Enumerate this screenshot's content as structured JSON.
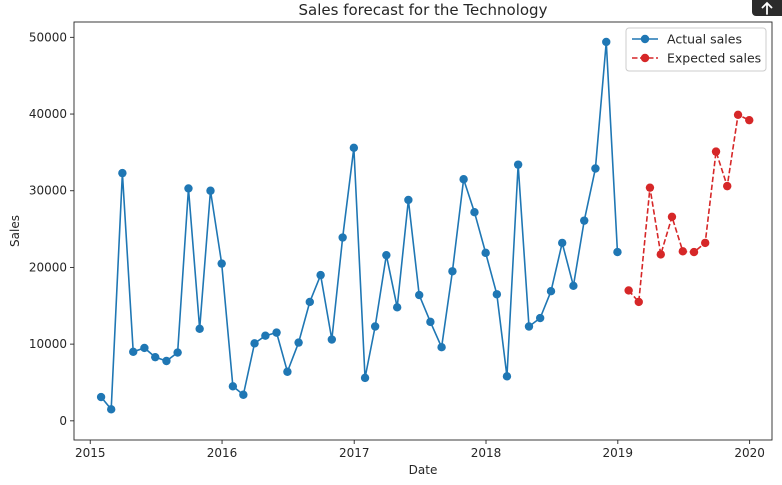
{
  "chart_data": {
    "type": "line",
    "title": "Sales forecast for the  Technology",
    "xlabel": "Date",
    "ylabel": "Sales",
    "xlim": [
      "2014-11-17",
      "2020-03-03"
    ],
    "ylim": [
      -2500,
      52000
    ],
    "x_ticks": [
      "2015-01-01",
      "2016-01-01",
      "2017-01-01",
      "2018-01-01",
      "2019-01-01",
      "2020-01-01"
    ],
    "x_tick_labels": [
      "2015",
      "2016",
      "2017",
      "2018",
      "2019",
      "2020"
    ],
    "y_ticks": [
      0,
      10000,
      20000,
      30000,
      40000,
      50000
    ],
    "y_tick_labels": [
      "0",
      "10000",
      "20000",
      "30000",
      "40000",
      "50000"
    ],
    "legend_position": "top-right",
    "grid": false,
    "series": [
      {
        "name": "Actual sales",
        "color": "#1f77b4",
        "line_style": "solid",
        "marker": "circle",
        "points": [
          [
            "2015-01-31",
            3100
          ],
          [
            "2015-02-28",
            1500
          ],
          [
            "2015-03-31",
            32300
          ],
          [
            "2015-04-30",
            9000
          ],
          [
            "2015-05-31",
            9500
          ],
          [
            "2015-06-30",
            8300
          ],
          [
            "2015-07-31",
            7800
          ],
          [
            "2015-08-31",
            8900
          ],
          [
            "2015-09-30",
            30300
          ],
          [
            "2015-10-31",
            12000
          ],
          [
            "2015-11-30",
            30000
          ],
          [
            "2015-12-31",
            20500
          ],
          [
            "2016-01-31",
            4500
          ],
          [
            "2016-02-29",
            3400
          ],
          [
            "2016-03-31",
            10100
          ],
          [
            "2016-04-30",
            11100
          ],
          [
            "2016-05-31",
            11500
          ],
          [
            "2016-06-30",
            6400
          ],
          [
            "2016-07-31",
            10200
          ],
          [
            "2016-08-31",
            15500
          ],
          [
            "2016-09-30",
            19000
          ],
          [
            "2016-10-31",
            10600
          ],
          [
            "2016-11-30",
            23900
          ],
          [
            "2016-12-31",
            35600
          ],
          [
            "2017-01-31",
            5600
          ],
          [
            "2017-02-28",
            12300
          ],
          [
            "2017-03-31",
            21600
          ],
          [
            "2017-04-30",
            14800
          ],
          [
            "2017-05-31",
            28800
          ],
          [
            "2017-06-30",
            16400
          ],
          [
            "2017-07-31",
            12900
          ],
          [
            "2017-08-31",
            9600
          ],
          [
            "2017-09-30",
            19500
          ],
          [
            "2017-10-31",
            31500
          ],
          [
            "2017-11-30",
            27200
          ],
          [
            "2017-12-31",
            21900
          ],
          [
            "2018-01-31",
            16500
          ],
          [
            "2018-02-28",
            5800
          ],
          [
            "2018-03-31",
            33400
          ],
          [
            "2018-04-30",
            12300
          ],
          [
            "2018-05-31",
            13400
          ],
          [
            "2018-06-30",
            16900
          ],
          [
            "2018-07-31",
            23200
          ],
          [
            "2018-08-31",
            17600
          ],
          [
            "2018-09-30",
            26100
          ],
          [
            "2018-10-31",
            32900
          ],
          [
            "2018-11-30",
            49400
          ],
          [
            "2018-12-31",
            22000
          ]
        ]
      },
      {
        "name": "Expected sales",
        "color": "#d62728",
        "line_style": "dashed",
        "marker": "circle",
        "points": [
          [
            "2019-01-31",
            17000
          ],
          [
            "2019-02-28",
            15500
          ],
          [
            "2019-03-31",
            30400
          ],
          [
            "2019-04-30",
            21700
          ],
          [
            "2019-05-31",
            26600
          ],
          [
            "2019-06-30",
            22100
          ],
          [
            "2019-07-31",
            22000
          ],
          [
            "2019-08-31",
            23200
          ],
          [
            "2019-09-30",
            35100
          ],
          [
            "2019-10-31",
            30600
          ],
          [
            "2019-11-30",
            39900
          ],
          [
            "2019-12-31",
            39200
          ]
        ]
      }
    ]
  }
}
